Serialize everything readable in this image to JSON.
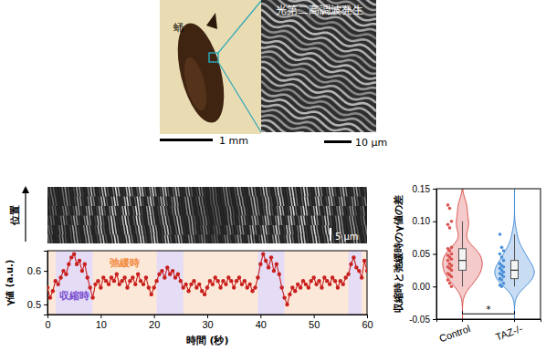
{
  "images": {
    "pupa": {
      "label": "蛹",
      "scale_bar": "1 mm"
    },
    "shg": {
      "title": "光第二高調波発生",
      "scale_bar": "10 μm"
    },
    "kymograph": {
      "axis_label": "位置",
      "scale_bar": "5 μm"
    }
  },
  "chart_data": [
    {
      "type": "line",
      "marker": "circle",
      "color": "#c8201e",
      "x_label": "時間 (秒)",
      "y_label": "γ値 (a.u.)",
      "xlim": [
        0,
        60
      ],
      "xticks": [
        0,
        10,
        20,
        30,
        40,
        50,
        60
      ],
      "ylim": [
        0.47,
        0.66
      ],
      "yticks": [
        0.5,
        0.6
      ],
      "x": [
        0,
        0.5,
        1,
        1.5,
        2,
        2.5,
        3,
        3.5,
        4,
        4.5,
        5,
        5.5,
        6,
        6.5,
        7,
        7.5,
        8,
        8.5,
        9,
        9.5,
        10,
        10.5,
        11,
        11.5,
        12,
        12.5,
        13,
        13.5,
        14,
        14.5,
        15,
        15.5,
        16,
        16.5,
        17,
        17.5,
        18,
        18.5,
        19,
        19.5,
        20,
        20.5,
        21,
        21.5,
        22,
        22.5,
        23,
        23.5,
        24,
        24.5,
        25,
        25.5,
        26,
        26.5,
        27,
        27.5,
        28,
        28.5,
        29,
        29.5,
        30,
        30.5,
        31,
        31.5,
        32,
        32.5,
        33,
        33.5,
        34,
        34.5,
        35,
        35.5,
        36,
        36.5,
        37,
        37.5,
        38,
        38.5,
        39,
        39.5,
        40,
        40.5,
        41,
        41.5,
        42,
        42.5,
        43,
        43.5,
        44,
        44.5,
        45,
        45.5,
        46,
        46.5,
        47,
        47.5,
        48,
        48.5,
        49,
        49.5,
        50,
        50.5,
        51,
        51.5,
        52,
        52.5,
        53,
        53.5,
        54,
        54.5,
        55,
        55.5,
        56,
        56.5,
        57,
        57.5,
        58,
        58.5,
        59,
        59.5,
        60
      ],
      "values": [
        0.55,
        0.52,
        0.54,
        0.57,
        0.56,
        0.58,
        0.6,
        0.59,
        0.62,
        0.64,
        0.65,
        0.62,
        0.63,
        0.6,
        0.62,
        0.58,
        0.55,
        0.52,
        0.56,
        0.57,
        0.55,
        0.58,
        0.57,
        0.56,
        0.58,
        0.57,
        0.59,
        0.56,
        0.57,
        0.58,
        0.55,
        0.57,
        0.58,
        0.56,
        0.59,
        0.57,
        0.56,
        0.58,
        0.55,
        0.53,
        0.55,
        0.57,
        0.59,
        0.6,
        0.58,
        0.61,
        0.59,
        0.6,
        0.58,
        0.59,
        0.57,
        0.55,
        0.56,
        0.54,
        0.56,
        0.57,
        0.55,
        0.56,
        0.54,
        0.53,
        0.55,
        0.57,
        0.56,
        0.58,
        0.57,
        0.55,
        0.57,
        0.56,
        0.58,
        0.57,
        0.55,
        0.57,
        0.58,
        0.56,
        0.57,
        0.55,
        0.56,
        0.54,
        0.55,
        0.58,
        0.62,
        0.65,
        0.63,
        0.61,
        0.64,
        0.6,
        0.62,
        0.59,
        0.55,
        0.52,
        0.5,
        0.53,
        0.55,
        0.54,
        0.56,
        0.55,
        0.57,
        0.56,
        0.55,
        0.57,
        0.58,
        0.56,
        0.57,
        0.55,
        0.58,
        0.57,
        0.56,
        0.58,
        0.57,
        0.55,
        0.57,
        0.56,
        0.58,
        0.59,
        0.62,
        0.64,
        0.61,
        0.6,
        0.58,
        0.63,
        0.6
      ],
      "regions": [
        {
          "text": "収縮時",
          "color": "#7b4fd0",
          "intervals": [
            [
              1.5,
              8.5
            ],
            [
              20.5,
              25.5
            ],
            [
              39.5,
              44.5
            ],
            [
              56.5,
              59
            ]
          ]
        },
        {
          "text": "弛緩時",
          "color": "#f08a3c",
          "intervals": [
            [
              0,
              1.5
            ],
            [
              8.5,
              20.5
            ],
            [
              25.5,
              39.5
            ],
            [
              44.5,
              56.5
            ],
            [
              59,
              60
            ]
          ]
        }
      ]
    },
    {
      "type": "violin",
      "categories": [
        "Control",
        "TAZ-/-"
      ],
      "colors": [
        "#d9534f",
        "#4a90d9"
      ],
      "y_label": "収縮時と弛緩時のγ値の差",
      "ylim": [
        -0.05,
        0.15
      ],
      "yticks": [
        -0.05,
        {
          "value": 0,
          "label": "0.00"
        },
        0.05,
        {
          "value": 0.1,
          "label": "0.10"
        },
        0.15
      ],
      "points": [
        [
          0.125,
          0.12,
          0.1,
          0.095,
          0.09,
          0.06,
          0.058,
          0.055,
          0.05,
          0.048,
          0.045,
          0.042,
          0.04,
          0.035,
          0.032,
          0.03,
          0.028,
          0.025,
          0.02,
          0.018,
          0.015,
          0.01,
          0.005,
          0.0
        ],
        [
          0.08,
          0.06,
          0.055,
          0.05,
          0.045,
          0.04,
          0.035,
          0.032,
          0.03,
          0.028,
          0.025,
          0.022,
          0.02,
          0.018,
          0.015,
          0.012,
          0.01,
          0.005,
          0.002,
          0.0
        ]
      ],
      "box": [
        {
          "q1": 0.025,
          "median": 0.04,
          "q3": 0.058,
          "whisker_low": 0.0,
          "whisker_high": 0.1
        },
        {
          "q1": 0.012,
          "median": 0.025,
          "q3": 0.04,
          "whisker_low": 0.0,
          "whisker_high": 0.08
        }
      ],
      "significance": "*"
    }
  ]
}
